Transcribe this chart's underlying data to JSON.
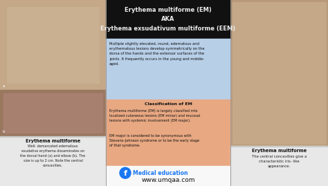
{
  "title_text": "Erythema multiforme (EM)\nAKA\nErythema exsudativum multiforme (EEM)",
  "title_bg": "#111111",
  "title_color": "#eeeeee",
  "blue_box_text": "Multiple slightly elevated, round, edematous and\nerythematous lesions develop symmetrically on the\ndorsa of the hands and the extensor surfaces of the\njoints. It frequently occurs in the young and middle-\naged.",
  "blue_box_bg": "#b8cfe8",
  "orange_box_title": "Classification of EM",
  "orange_box_text1": "Erythema multiforme (EM) is largely classified into\nlocalized cutaneous lesions (EM minor) and mucosal\nlesions with systemic involvement (EM major).",
  "orange_box_text2": "EM major is considered to be synonymous with\nStevens–Johnson syndrome or to be the early stage\nof that syndrome.",
  "orange_box_bg": "#e8a882",
  "bottom_fb_text": "Medical education",
  "bottom_url": "www.umqaa.com",
  "bottom_bg": "#f8f8f8",
  "left_caption_title": "Erythema multiforme",
  "left_caption_text": "Well- demarcated edematous\nexudative erythema disseminates on\nthe dorsal hand (a) and elbow (b). The\nsize is up to 2 cm. Note the central\nconcavities.",
  "right_caption_title": "Erythema multiforme",
  "right_caption_text": "The central concavities give a\ncharacteristic iris- like\nappearance.",
  "left_top_photo_color": "#c0a080",
  "left_bot_photo_color": "#907060",
  "right_photo_color": "#b89078",
  "caption_bg": "#e8e8e8",
  "caption_border": "#cccccc",
  "fig_width": 4.74,
  "fig_height": 2.69,
  "dpi": 100
}
